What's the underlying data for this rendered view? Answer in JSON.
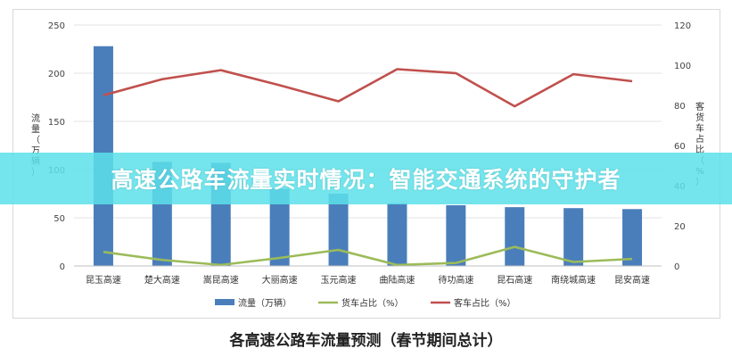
{
  "banner": {
    "text": "高速公路车流量实时情况：智能交通系统的守护者"
  },
  "caption": "各高速公路车流量预测（春节期间总计）",
  "chart_data": {
    "type": "bar",
    "categories": [
      "昆玉高速",
      "楚大高速",
      "嵩昆高速",
      "大丽高速",
      "玉元高速",
      "曲陆高速",
      "待功高速",
      "昆石高速",
      "南绕城高速",
      "昆安高速"
    ],
    "series": [
      {
        "name": "流量（万辆）",
        "type": "bar",
        "axis": "left",
        "color": "#4a7ebb",
        "values": [
          228,
          108,
          107,
          80,
          75,
          65,
          63,
          61,
          60,
          59
        ]
      },
      {
        "name": "货车占比（%）",
        "type": "line",
        "axis": "right",
        "color": "#9bbb59",
        "values": [
          7,
          3,
          0.5,
          4,
          8,
          0.5,
          1.5,
          9.5,
          2,
          3.5
        ]
      },
      {
        "name": "客车占比（%）",
        "type": "line",
        "axis": "right",
        "color": "#c0504d",
        "values": [
          85,
          93,
          97.5,
          90,
          82,
          98,
          96,
          79.5,
          95.5,
          92
        ]
      }
    ],
    "ylabel_left": "流量（万辆）",
    "ylabel_right": "客货车占比（%）",
    "ylim_left": [
      0,
      250
    ],
    "yticks_left": [
      "0",
      "50",
      "100",
      "150",
      "200",
      "250"
    ],
    "ylim_right": [
      0,
      120
    ],
    "yticks_right": [
      "0",
      "20",
      "40",
      "60",
      "80",
      "100",
      "120"
    ],
    "grid": true,
    "legend_position": "bottom"
  }
}
